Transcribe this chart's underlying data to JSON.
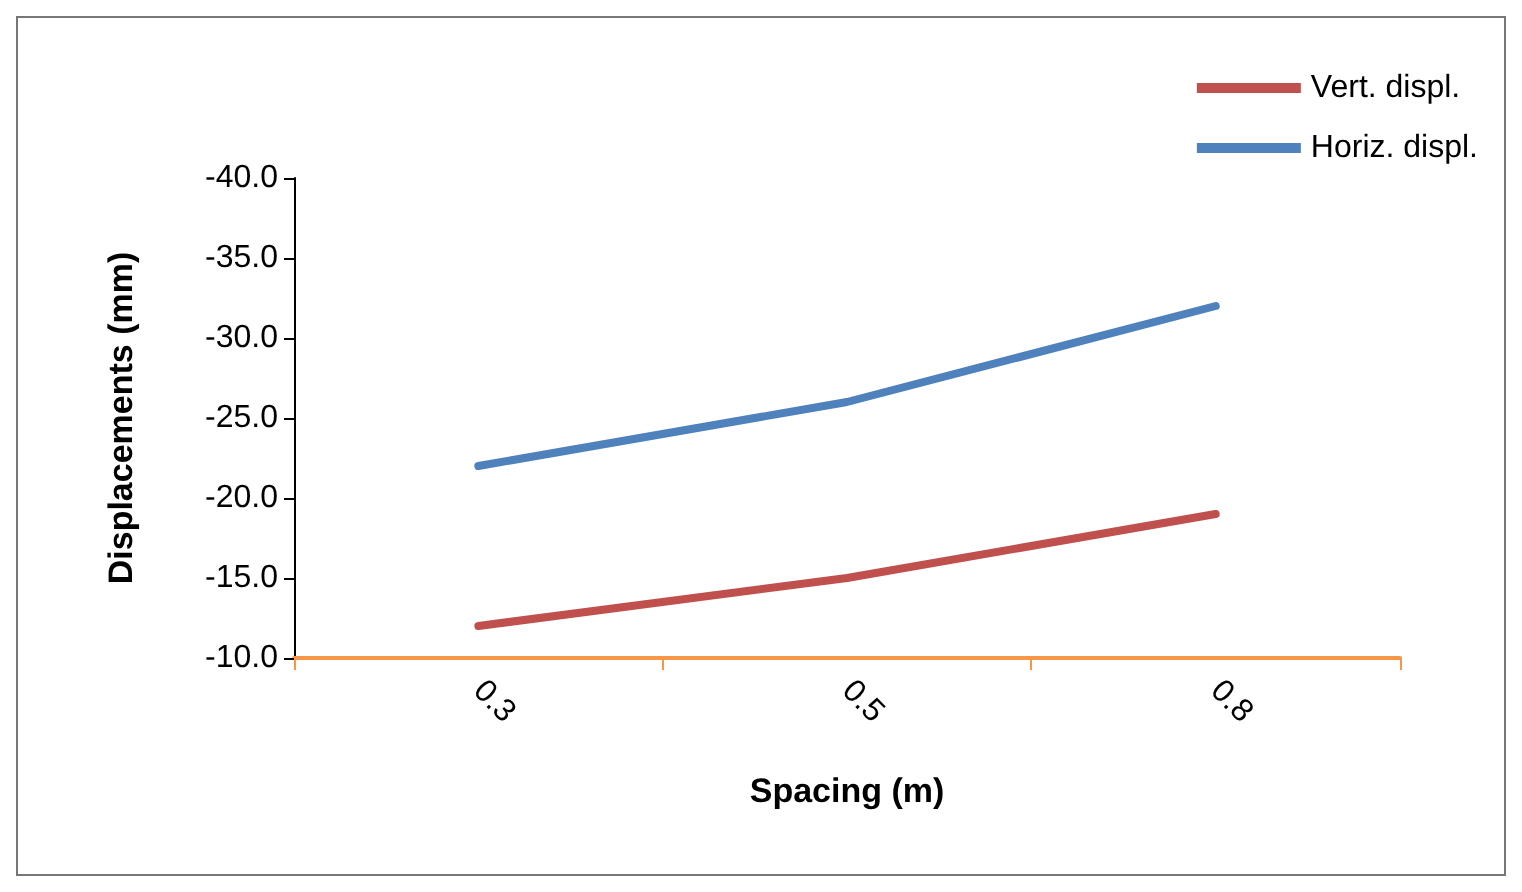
{
  "chart_data": {
    "type": "line",
    "xlabel": "Spacing (m)",
    "ylabel": "Displacements (mm)",
    "categories": [
      "0.3",
      "0.5",
      "0.8"
    ],
    "series": [
      {
        "name": "Vert. displ.",
        "color": "#c0504d",
        "values": [
          -12,
          -15,
          -19
        ]
      },
      {
        "name": "Horiz. displ.",
        "color": "#4f81bd",
        "values": [
          -22,
          -26,
          -32
        ]
      }
    ],
    "ylim": [
      -10,
      -40
    ],
    "yticks": [
      {
        "value": -40,
        "label": "-40.0"
      },
      {
        "value": -35,
        "label": "-35.0"
      },
      {
        "value": -30,
        "label": "-30.0"
      },
      {
        "value": -25,
        "label": "-25.0"
      },
      {
        "value": -20,
        "label": "-20.0"
      },
      {
        "value": -15,
        "label": "-15.0"
      },
      {
        "value": -10,
        "label": "-10.0"
      }
    ],
    "grid": false,
    "legend": "top right",
    "marker": "none",
    "line_style": "solid"
  }
}
